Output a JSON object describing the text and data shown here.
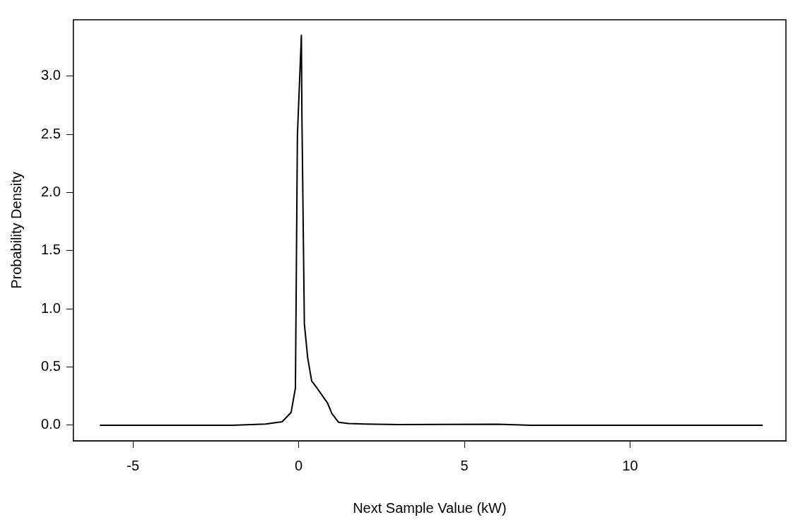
{
  "chart_data": {
    "type": "line",
    "xlabel": "Next Sample Value (kW)",
    "ylabel": "Probability Density",
    "x": [
      -6,
      -2,
      -1,
      -0.5,
      -0.23,
      -0.1,
      -0.04,
      0.08,
      0.095,
      0.17,
      0.27,
      0.39,
      0.55,
      0.87,
      1.0,
      1.2,
      1.5,
      2,
      3,
      6,
      7,
      14
    ],
    "series": [
      {
        "color": "#000000",
        "values": [
          0,
          0,
          0.01,
          0.03,
          0.11,
          0.32,
          2.49,
          3.35,
          2.68,
          0.87,
          0.58,
          0.38,
          0.32,
          0.19,
          0.1,
          0.026,
          0.015,
          0.01,
          0.005,
          0.008,
          0,
          0
        ]
      }
    ],
    "xlim": [
      -6.8,
      14.7
    ],
    "ylim": [
      -0.134,
      3.484
    ],
    "xticks": [
      -5,
      0,
      5,
      10
    ],
    "yticks": [
      {
        "value": 0,
        "label": "0.0"
      },
      {
        "value": 0.5,
        "label": "0.5"
      },
      {
        "value": 1,
        "label": "1.0"
      },
      {
        "value": 1.5,
        "label": "1.5"
      },
      {
        "value": 2,
        "label": "2.0"
      },
      {
        "value": 2.5,
        "label": "2.5"
      },
      {
        "value": 3,
        "label": "3.0"
      }
    ],
    "grid": false,
    "legend": false,
    "marker": "none",
    "line_style": "solid"
  }
}
